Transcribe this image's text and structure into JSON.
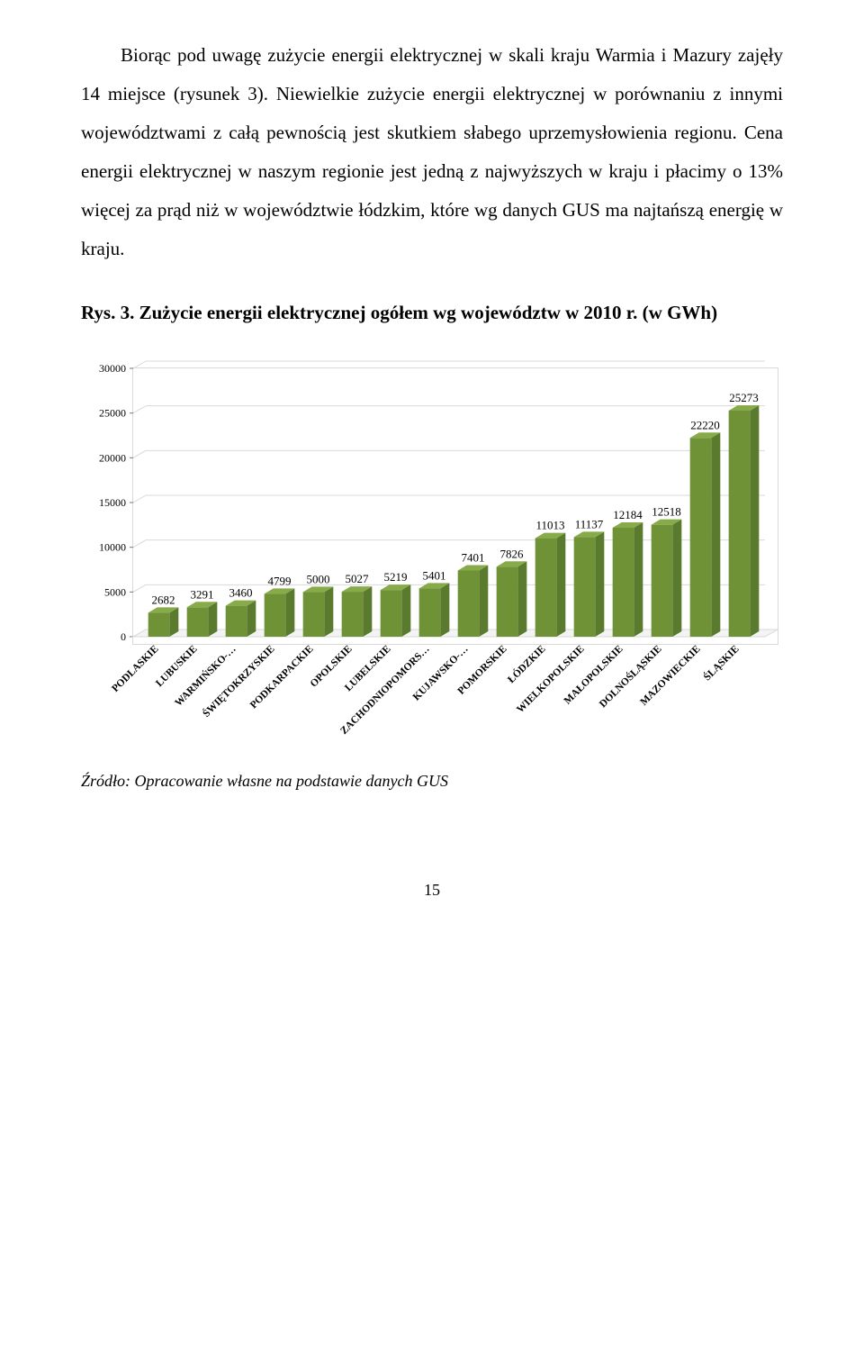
{
  "paragraph": "Biorąc pod uwagę zużycie energii elektrycznej w skali kraju Warmia i Mazury zajęły 14 miejsce (rysunek 3). Niewielkie zużycie energii elektrycznej w porównaniu z innymi województwami z całą pewnością jest skutkiem słabego uprzemysłowienia regionu. Cena energii elektrycznej w naszym regionie jest jedną z najwyższych w kraju i płacimy o 13% więcej za prąd niż w województwie łódzkim, które wg danych GUS ma najtańszą energię w kraju.",
  "chart_caption": "Rys. 3. Zużycie energii elektrycznej ogółem wg województw w 2010 r. (w GWh)",
  "source": "Źródło: Opracowanie własne na podstawie danych GUS",
  "page_number": "15",
  "chart": {
    "type": "bar-3d",
    "categories": [
      "PODLASKIE",
      "LUBUSKIE",
      "WARMIŃSKO-…",
      "ŚWIĘTOKRZYSKIE",
      "PODKARPACKIE",
      "OPOLSKIE",
      "LUBELSKIE",
      "ZACHODNIOPOMORS…",
      "KUJAWSKO-…",
      "POMORSKIE",
      "ŁÓDZKIE",
      "WIELKOPOLSKIE",
      "MAŁOPOLSKIE",
      "DOLNOŚLĄSKIE",
      "MAZOWIECKIE",
      "ŚLĄSKIE"
    ],
    "values": [
      2682,
      3291,
      3460,
      4799,
      5000,
      5027,
      5219,
      5401,
      7401,
      7826,
      11013,
      11137,
      12184,
      12518,
      22220,
      25273
    ],
    "ylim": [
      0,
      30000
    ],
    "ytick_step": 5000,
    "bar_front_color": "#6f9237",
    "bar_top_color": "#88ab4a",
    "bar_side_color": "#5a7a2d",
    "grid_color": "#d9d9d9",
    "floor_color": "#d9d9d9",
    "axis_font_size": 12,
    "axis_font_family": "Times New Roman",
    "label_font_size": 13,
    "data_label_color": "#000000",
    "inner_width": 780,
    "inner_height": 430
  }
}
